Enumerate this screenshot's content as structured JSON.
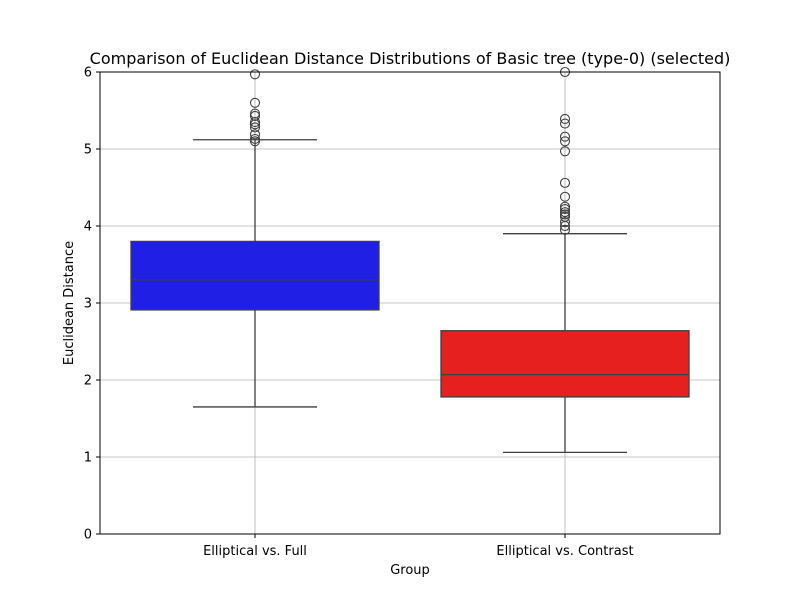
{
  "chart_data": {
    "type": "box",
    "title": "Comparison of Euclidean Distance Distributions of Basic tree (type-0) (selected)",
    "xlabel": "Group",
    "ylabel": "Euclidean Distance",
    "ylim": [
      0,
      6
    ],
    "yticks": [
      "0",
      "1",
      "2",
      "3",
      "4",
      "5",
      "6"
    ],
    "grid": true,
    "categories": [
      "Elliptical vs. Full",
      "Elliptical vs. Contrast"
    ],
    "boxes": [
      {
        "category": "Elliptical vs. Full",
        "color": "#1f1fe6",
        "whisker_low": 1.65,
        "q1": 2.91,
        "median": 3.3,
        "q3": 3.8,
        "whisker_high": 5.12,
        "outliers": [
          5.1,
          5.13,
          5.19,
          5.28,
          5.32,
          5.35,
          5.43,
          5.46,
          5.6,
          5.97
        ]
      },
      {
        "category": "Elliptical vs. Contrast",
        "color": "#e61f1f",
        "whisker_low": 1.06,
        "q1": 1.78,
        "median": 2.07,
        "q3": 2.64,
        "whisker_high": 3.9,
        "outliers": [
          3.95,
          4.0,
          4.05,
          4.12,
          4.15,
          4.18,
          4.22,
          4.25,
          4.38,
          4.56,
          4.97,
          5.1,
          5.16,
          5.33,
          5.39,
          6.02
        ]
      }
    ]
  }
}
